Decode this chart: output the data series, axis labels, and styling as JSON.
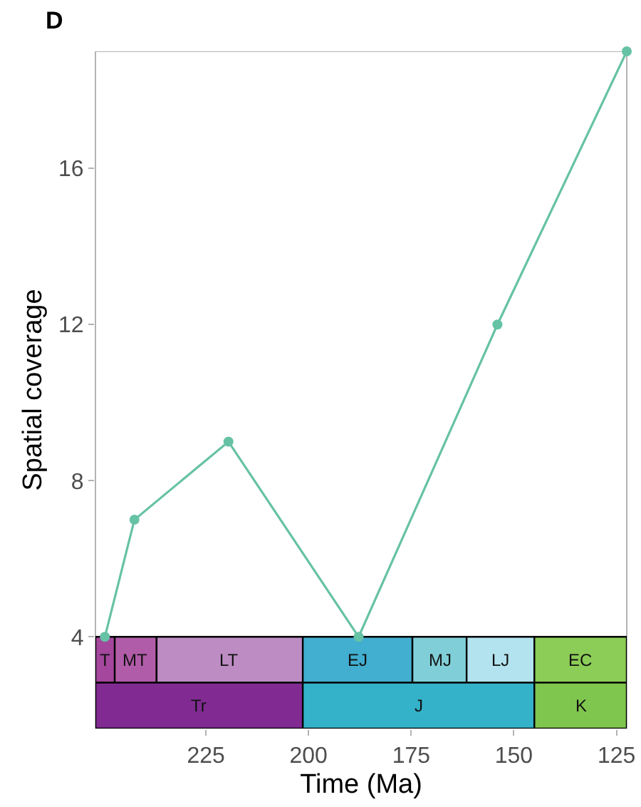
{
  "chart_data": {
    "type": "line",
    "title": "D",
    "xlabel": "Time (Ma)",
    "ylabel": "Spatial coverage",
    "x": [
      249.6,
      242.4,
      219.5,
      187.8,
      154.0,
      122.5
    ],
    "series": [
      {
        "color": "#66c2a5",
        "values": [
          4,
          7,
          9,
          4,
          12,
          19
        ]
      }
    ],
    "xlim": [
      251.9,
      122.5
    ],
    "xticks": [
      225,
      200,
      175,
      150,
      125
    ],
    "ylim": [
      1.65,
      19
    ],
    "yticks": [
      4,
      8,
      12,
      16
    ],
    "marker": "circle",
    "line_style": "solid",
    "grid": false,
    "bands": [
      {
        "axis": "x",
        "from": 251.9,
        "to": 247.2,
        "label": "T",
        "color": "#a4479d"
      },
      {
        "axis": "x",
        "from": 247.2,
        "to": 237,
        "label": "MT",
        "color": "#b15ca9"
      },
      {
        "axis": "x",
        "from": 237,
        "to": 201.4,
        "label": "LT",
        "color": "#bd8cc3"
      },
      {
        "axis": "x",
        "from": 201.4,
        "to": 174.7,
        "label": "EJ",
        "color": "#42aed0"
      },
      {
        "axis": "x",
        "from": 174.7,
        "to": 161.5,
        "label": "MJ",
        "color": "#80cfd8"
      },
      {
        "axis": "x",
        "from": 161.5,
        "to": 145,
        "label": "LJ",
        "color": "#b3e3ee"
      },
      {
        "axis": "x",
        "from": 145,
        "to": 122.5,
        "label": "EC",
        "color": "#8ccd57"
      },
      {
        "axis": "x",
        "from": 251.9,
        "to": 201.4,
        "label": "Tr",
        "color": "#812b92"
      },
      {
        "axis": "x",
        "from": 201.4,
        "to": 145,
        "label": "J",
        "color": "#34b2c9"
      },
      {
        "axis": "x",
        "from": 145,
        "to": 122.5,
        "label": "K",
        "color": "#7fc64e"
      }
    ]
  }
}
